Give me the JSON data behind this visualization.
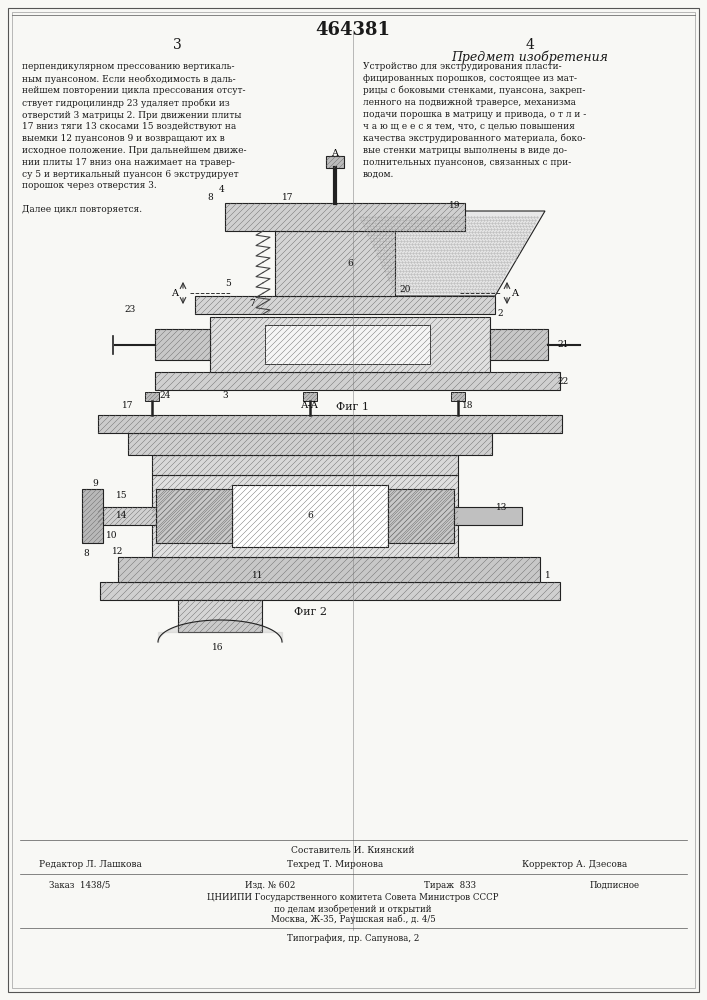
{
  "patent_number": "464381",
  "page_numbers": [
    "3",
    "4"
  ],
  "col_left_header": "",
  "col_right_header": "Предмет изобретения",
  "col_left_text": "перпендикулярном прессованию вертикаль-\nным пуансоном. Если необходимость в даль-\nнейшем повторении цикла прессования отсут-\nствует гидроцилиндр 23 удаляет пробки из\nотверстий 3 матрицы 2. При движении плиты\n17 вниз тяги 13 скосами 15 воздействуют на\nвыемки 12 пуансонов 9 и возвращают их в\nисходное положение. При дальнейшем движе-\nнии плиты 17 вниз она нажимает на травер-\nсу 5 и вертикальный пуансон 6 экструдирует\nпорошок через отверстия 3.\n\nДалее цикл повторяется.",
  "col_right_text": "Устройство для экструдирования пласти-\nфицированных порошков, состоящее из мат-\nрицы с боковыми стенками, пуансона, закреп-\nленного на подвижной траверсе, механизма\nподачи порошка в матрицу и привода, о т л и -\nч а ю щ е е с я тем, что, с целью повышения\nкачества экструдированного материала, боко-\nвые стенки матрицы выполнены в виде до-\nполнительных пуансонов, связанных с при-\nводом.",
  "fig1_label": "Фиг 1",
  "fig2_label": "Фиг 2",
  "footer_compositor": "Составитель И. Киянский",
  "footer_editor": "Редактор Л. Лашкова",
  "footer_tech": "Техред Т. Миронова",
  "footer_corrector": "Корректор А. Дзесова",
  "footer_order": "Заказ  1438/5",
  "footer_edition": "Изд. № 602",
  "footer_circulation": "Тираж  833",
  "footer_subscription": "Подписное",
  "footer_org": "ЦНИИПИ Государственного комитета Совета Министров СССР",
  "footer_org2": "по делам изобретений и открытий",
  "footer_address": "Москва, Ж-35, Раушская наб., д. 4/5",
  "footer_print": "Типография, пр. Сапунова, 2",
  "bg_color": "#f5f5f0",
  "text_color": "#1a1a1a",
  "border_color": "#888888"
}
